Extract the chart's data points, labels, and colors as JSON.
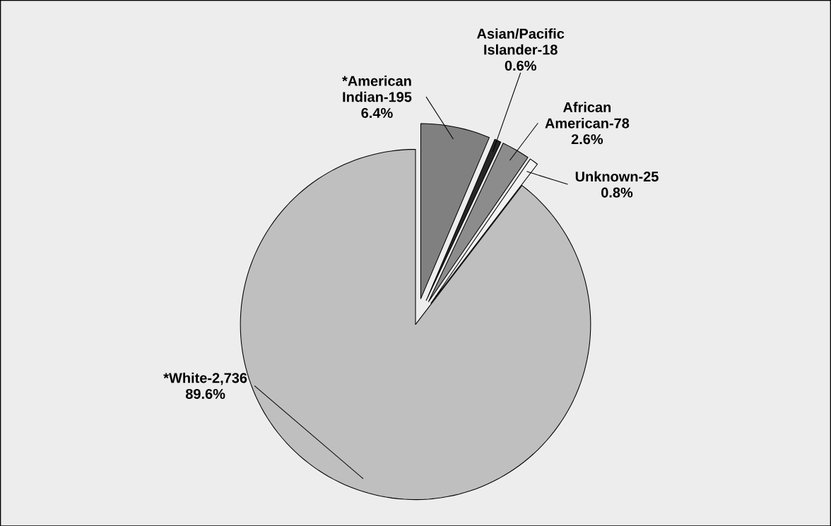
{
  "chart_data": {
    "type": "pie",
    "categories": [
      "*American Indian-195",
      "Asian/Pacific Islander-18",
      "African American-78",
      "Unknown-25",
      "*White-2,736"
    ],
    "values": [
      6.4,
      0.6,
      2.6,
      0.8,
      89.6
    ],
    "value_labels": [
      "6.4%",
      "0.6%",
      "2.6%",
      "0.8%",
      "89.6%"
    ],
    "colors": [
      "#808080",
      "#262626",
      "#8c8c8c",
      "#f2f2f2",
      "#bfbfbf"
    ]
  }
}
